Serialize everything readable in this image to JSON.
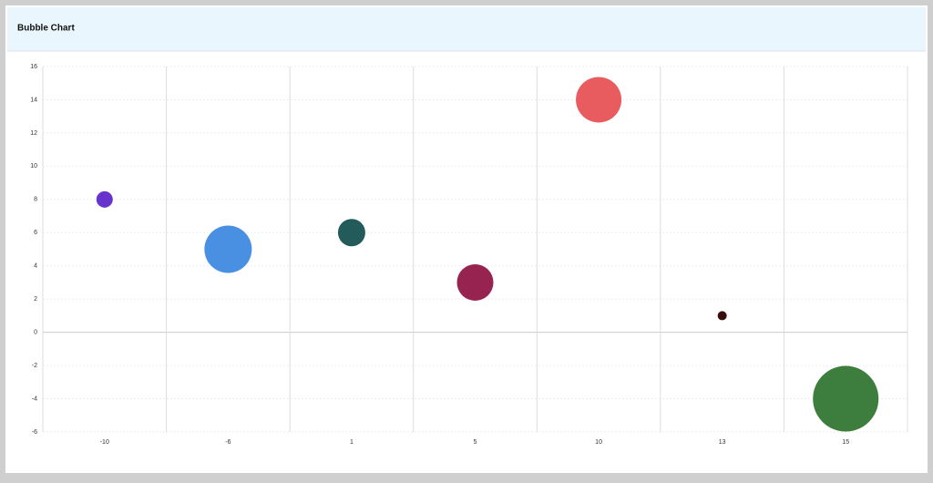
{
  "chart_data": {
    "type": "bubble",
    "title": "Bubble Chart",
    "categories": [
      "-10",
      "-6",
      "1",
      "5",
      "10",
      "13",
      "15"
    ],
    "values": [
      8,
      5,
      6,
      3,
      14,
      1,
      -4
    ],
    "sizes": [
      9,
      26,
      15,
      20,
      25,
      5,
      36
    ],
    "colors": [
      "#6633cc",
      "#4a90e2",
      "#235b5b",
      "#962350",
      "#e85b5e",
      "#3a0d0d",
      "#3d7d3d"
    ],
    "ylim": [
      -6,
      16
    ],
    "yticks": [
      -6,
      -4,
      -2,
      0,
      2,
      4,
      6,
      8,
      10,
      12,
      14,
      16
    ],
    "grid": true
  }
}
